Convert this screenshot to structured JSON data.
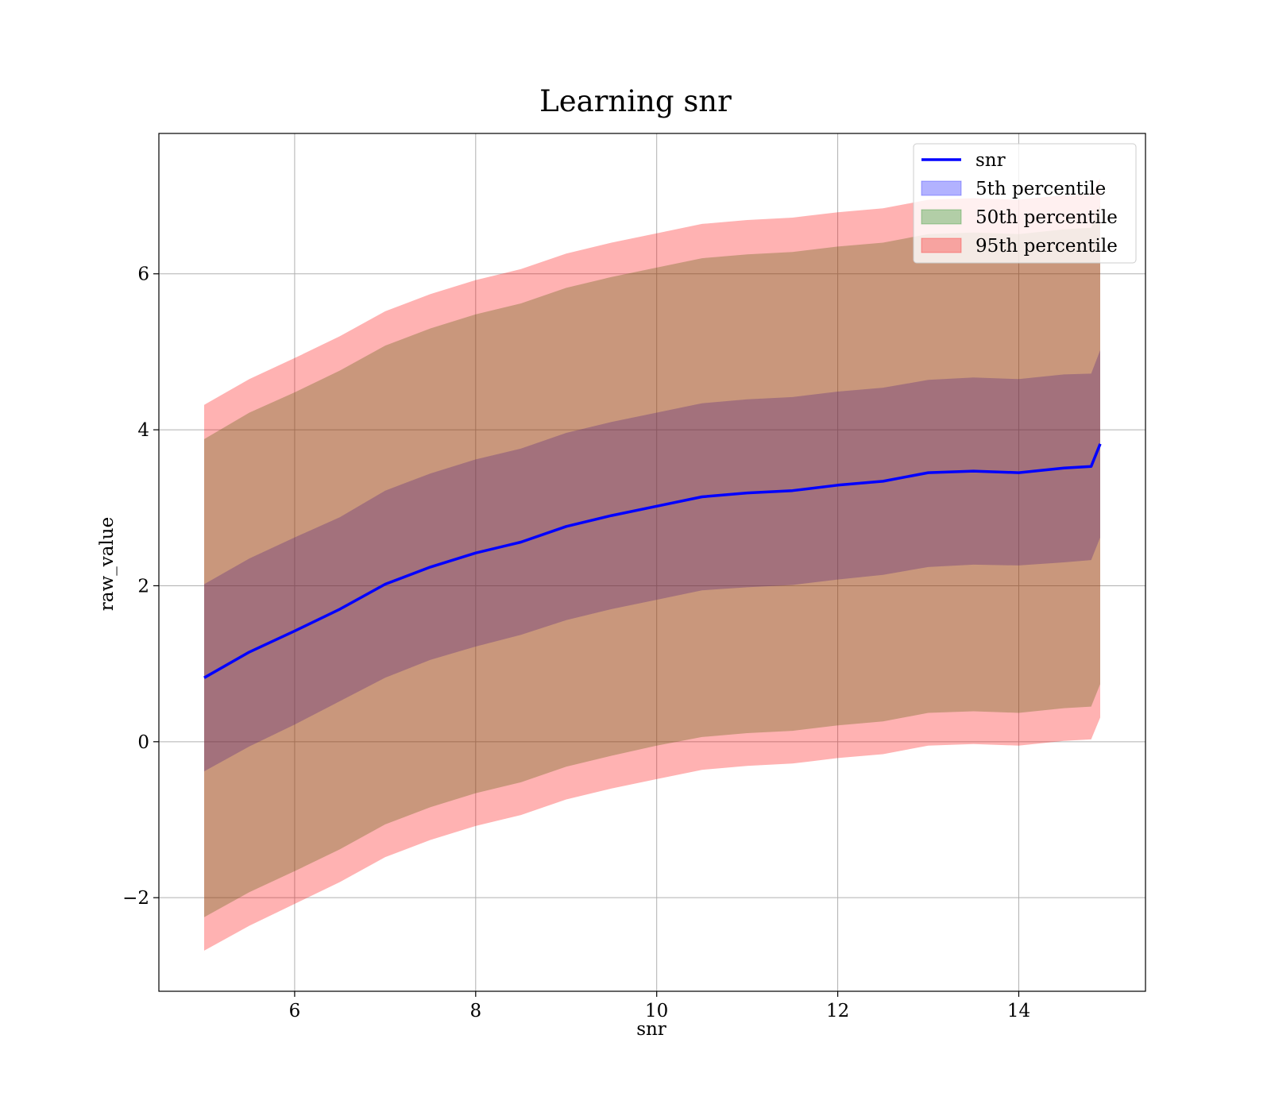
{
  "chart_data": {
    "type": "area",
    "title": "Learning snr",
    "xlabel": "snr",
    "ylabel": "raw_value",
    "xlim": [
      4.5,
      15.4
    ],
    "ylim": [
      -3.2,
      7.8
    ],
    "grid": true,
    "legend_position": "top-right",
    "x_ticks": [
      6,
      8,
      10,
      12,
      14
    ],
    "y_ticks": [
      -2,
      0,
      2,
      4,
      6
    ],
    "x_tick_labels": [
      "6",
      "8",
      "10",
      "12",
      "14"
    ],
    "y_tick_labels": [
      "−2",
      "0",
      "2",
      "4",
      "6"
    ],
    "x": [
      5.0,
      5.5,
      6.0,
      6.5,
      7.0,
      7.5,
      8.0,
      8.5,
      9.0,
      9.5,
      10.0,
      10.5,
      11.0,
      11.5,
      12.0,
      12.5,
      13.0,
      13.5,
      14.0,
      14.5,
      14.8,
      14.9
    ],
    "series": [
      {
        "name": "snr",
        "kind": "line",
        "color": "#0000ff",
        "values": [
          0.82,
          1.15,
          1.42,
          1.7,
          2.02,
          2.24,
          2.42,
          2.56,
          2.76,
          2.9,
          3.02,
          3.14,
          3.19,
          3.22,
          3.29,
          3.34,
          3.45,
          3.47,
          3.45,
          3.51,
          3.53,
          3.82
        ]
      },
      {
        "name": "5th percentile",
        "kind": "band",
        "color": "#0000ff",
        "opacity": 0.3,
        "lower": [
          -0.38,
          -0.06,
          0.22,
          0.52,
          0.82,
          1.05,
          1.22,
          1.37,
          1.56,
          1.7,
          1.82,
          1.94,
          1.98,
          2.01,
          2.08,
          2.14,
          2.24,
          2.27,
          2.26,
          2.3,
          2.33,
          2.62
        ],
        "upper": [
          2.02,
          2.35,
          2.62,
          2.88,
          3.22,
          3.44,
          3.62,
          3.76,
          3.96,
          4.1,
          4.22,
          4.34,
          4.39,
          4.42,
          4.49,
          4.54,
          4.64,
          4.67,
          4.65,
          4.71,
          4.72,
          5.02
        ]
      },
      {
        "name": "50th percentile",
        "kind": "band",
        "color": "#008000",
        "opacity": 0.3,
        "lower": [
          -2.25,
          -1.93,
          -1.66,
          -1.38,
          -1.06,
          -0.84,
          -0.66,
          -0.52,
          -0.32,
          -0.18,
          -0.05,
          0.06,
          0.11,
          0.14,
          0.21,
          0.26,
          0.37,
          0.39,
          0.37,
          0.43,
          0.45,
          0.74
        ],
        "upper": [
          3.88,
          4.22,
          4.48,
          4.76,
          5.08,
          5.3,
          5.48,
          5.62,
          5.82,
          5.96,
          6.08,
          6.2,
          6.25,
          6.28,
          6.35,
          6.4,
          6.51,
          6.53,
          6.51,
          6.57,
          6.59,
          6.88
        ]
      },
      {
        "name": "95th percentile",
        "kind": "band",
        "color": "#ff0000",
        "opacity": 0.3,
        "lower": [
          -2.68,
          -2.36,
          -2.08,
          -1.8,
          -1.48,
          -1.26,
          -1.08,
          -0.94,
          -0.74,
          -0.6,
          -0.48,
          -0.36,
          -0.31,
          -0.28,
          -0.21,
          -0.16,
          -0.05,
          -0.03,
          -0.05,
          0.01,
          0.03,
          0.31
        ],
        "upper": [
          4.32,
          4.65,
          4.92,
          5.2,
          5.52,
          5.74,
          5.92,
          6.06,
          6.26,
          6.4,
          6.52,
          6.64,
          6.69,
          6.72,
          6.79,
          6.84,
          6.95,
          6.97,
          6.95,
          7.01,
          7.03,
          7.22
        ]
      }
    ]
  }
}
